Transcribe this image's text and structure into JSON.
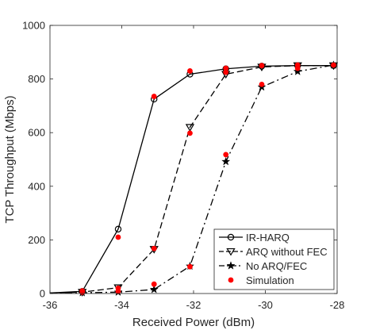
{
  "chart_data": {
    "type": "line",
    "title": "",
    "xlabel": "Received Power (dBm)",
    "ylabel": "TCP Throughput (Mbps)",
    "xlim": [
      -36,
      -28
    ],
    "ylim": [
      0,
      1000
    ],
    "xticks": [
      -36,
      -34,
      -32,
      -30,
      -28
    ],
    "yticks": [
      0,
      200,
      400,
      600,
      800,
      1000
    ],
    "grid": false,
    "legend_position": "bottom-right",
    "series": [
      {
        "name": "IR-HARQ",
        "line": "solid",
        "marker": "circle",
        "color": "#000000",
        "x": [
          -36,
          -35.1,
          -34.1,
          -33.1,
          -32.1,
          -31.1,
          -30.1,
          -29.1,
          -28.1
        ],
        "y": [
          2,
          8,
          240,
          725,
          818,
          838,
          848,
          850,
          850
        ]
      },
      {
        "name": "ARQ without FEC",
        "line": "dashed",
        "marker": "triangle-down",
        "color": "#000000",
        "x": [
          -36,
          -35.1,
          -34.1,
          -33.1,
          -32.1,
          -31.1,
          -30.1,
          -29.1,
          -28.1
        ],
        "y": [
          2,
          5,
          22,
          165,
          620,
          818,
          845,
          850,
          850
        ]
      },
      {
        "name": "No ARQ/FEC",
        "line": "dashdot",
        "marker": "star",
        "color": "#000000",
        "x": [
          -36,
          -35.1,
          -34.1,
          -33.1,
          -32.1,
          -31.1,
          -30.1,
          -29.1,
          -28.1
        ],
        "y": [
          2,
          3,
          5,
          15,
          102,
          492,
          770,
          828,
          852
        ]
      },
      {
        "name": "Simulation",
        "line": "none",
        "marker": "filled-circle",
        "color": "#ff0000",
        "x": [
          -35.1,
          -35.1,
          -34.1,
          -34.1,
          -34.1,
          -33.1,
          -33.1,
          -33.1,
          -32.1,
          -32.1,
          -32.1,
          -31.1,
          -31.1,
          -31.1,
          -30.1,
          -30.1,
          -29.1,
          -29.1,
          -28.1
        ],
        "y": [
          10,
          5,
          210,
          20,
          8,
          735,
          168,
          35,
          830,
          598,
          100,
          840,
          518,
          825,
          850,
          780,
          852,
          840,
          852
        ]
      }
    ]
  }
}
